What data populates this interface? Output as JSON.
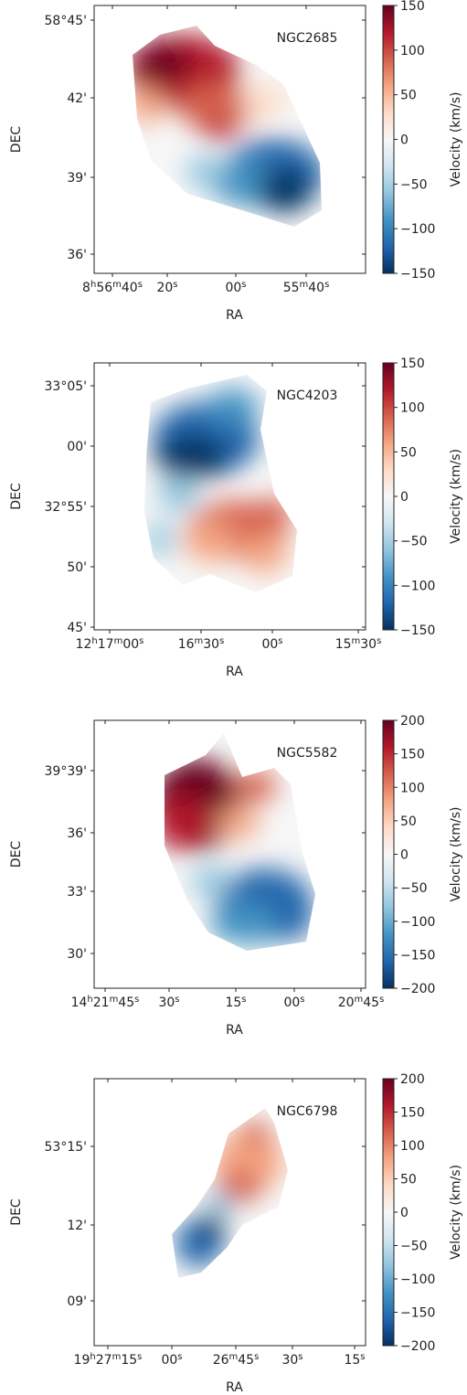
{
  "colors": {
    "cmap": [
      "#053061",
      "#2166ac",
      "#4393c3",
      "#92c5de",
      "#d1e5f0",
      "#f7f7f7",
      "#fddbc7",
      "#f4a582",
      "#d6604d",
      "#b2182b",
      "#67001f"
    ],
    "colormap_name": "RdBu_r"
  },
  "chart_data": [
    {
      "type": "heatmap",
      "title": "NGC2685",
      "xlabel": "RA",
      "ylabel": "DEC",
      "x_ticks": [
        "8h56m40s",
        "20s",
        "00s",
        "55m40s"
      ],
      "x_ticks_html": [
        [
          "8",
          "h",
          "56",
          "m",
          "40",
          "s"
        ],
        [
          "20",
          "s"
        ],
        [
          "00",
          "s"
        ],
        [
          "55",
          "m",
          "40",
          "s"
        ]
      ],
      "y_ticks": [
        "58°45'",
        "42'",
        "39'",
        "36'"
      ],
      "colorbar": {
        "label": "Velocity (km/s)",
        "range": [
          -150,
          150
        ],
        "ticks": [
          150,
          100,
          50,
          0,
          -50,
          -100,
          -150
        ],
        "tick_labels": [
          "150",
          "100",
          "50",
          "0",
          "−50",
          "−100",
          "−150"
        ]
      }
    },
    {
      "type": "heatmap",
      "title": "NGC4203",
      "xlabel": "RA",
      "ylabel": "DEC",
      "x_ticks": [
        "12h17m00s",
        "16m30s",
        "00s",
        "15m30s"
      ],
      "x_ticks_html": [
        [
          "12",
          "h",
          "17",
          "m",
          "00",
          "s"
        ],
        [
          "16",
          "m",
          "30",
          "s"
        ],
        [
          "00",
          "s"
        ],
        [
          "15",
          "m",
          "30",
          "s"
        ]
      ],
      "y_ticks": [
        "33°05'",
        "00'",
        "32°55'",
        "50'",
        "45'"
      ],
      "colorbar": {
        "label": "Velocity (km/s)",
        "range": [
          -150,
          150
        ],
        "ticks": [
          150,
          100,
          50,
          0,
          -50,
          -100,
          -150
        ],
        "tick_labels": [
          "150",
          "100",
          "50",
          "0",
          "−50",
          "−100",
          "−150"
        ]
      }
    },
    {
      "type": "heatmap",
      "title": "NGC5582",
      "xlabel": "RA",
      "ylabel": "DEC",
      "x_ticks": [
        "14h21m45s",
        "30s",
        "15s",
        "00s",
        "20m45s"
      ],
      "x_ticks_html": [
        [
          "14",
          "h",
          "21",
          "m",
          "45",
          "s"
        ],
        [
          "30",
          "s"
        ],
        [
          "15",
          "s"
        ],
        [
          "00",
          "s"
        ],
        [
          "20",
          "m",
          "45",
          "s"
        ]
      ],
      "y_ticks": [
        "39°39'",
        "36'",
        "33'",
        "30'"
      ],
      "colorbar": {
        "label": "Velocity (km/s)",
        "range": [
          -200,
          200
        ],
        "ticks": [
          200,
          150,
          100,
          50,
          0,
          -50,
          -100,
          -150,
          -200
        ],
        "tick_labels": [
          "200",
          "150",
          "100",
          "50",
          "0",
          "−50",
          "−100",
          "−150",
          "−200"
        ]
      }
    },
    {
      "type": "heatmap",
      "title": "NGC6798",
      "xlabel": "RA",
      "ylabel": "DEC",
      "x_ticks": [
        "19h27m15s",
        "00s",
        "26m45s",
        "30s",
        "15s"
      ],
      "x_ticks_html": [
        [
          "19",
          "h",
          "27",
          "m",
          "15",
          "s"
        ],
        [
          "00",
          "s"
        ],
        [
          "26",
          "m",
          "45",
          "s"
        ],
        [
          "30",
          "s"
        ],
        [
          "15",
          "s"
        ]
      ],
      "y_ticks": [
        "53°15'",
        "12'",
        "09'"
      ],
      "colorbar": {
        "label": "Velocity (km/s)",
        "range": [
          -200,
          200
        ],
        "ticks": [
          200,
          150,
          100,
          50,
          0,
          -50,
          -100,
          -150,
          -200
        ],
        "tick_labels": [
          "200",
          "150",
          "100",
          "50",
          "0",
          "−50",
          "−100",
          "−150",
          "−200"
        ]
      }
    }
  ]
}
